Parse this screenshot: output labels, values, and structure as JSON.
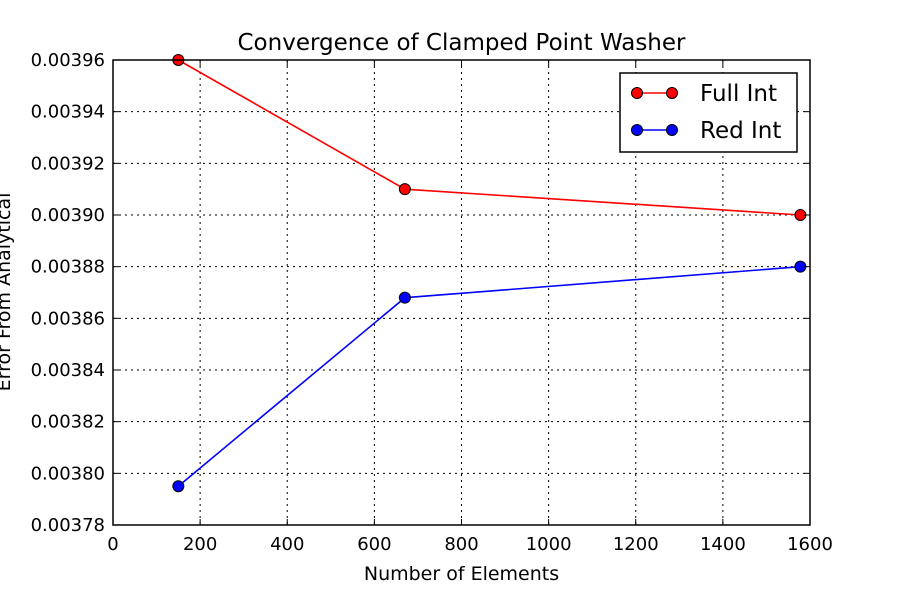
{
  "chart_data": {
    "type": "line",
    "title": "Convergence of Clamped Point Washer",
    "xlabel": "Number of Elements",
    "ylabel": "Error From Analytical",
    "xlim": [
      0,
      1600
    ],
    "ylim": [
      0.00378,
      0.00396
    ],
    "xticks": [
      0,
      200,
      400,
      600,
      800,
      1000,
      1200,
      1400,
      1600
    ],
    "xtick_labels": [
      "0",
      "200",
      "400",
      "600",
      "800",
      "1000",
      "1200",
      "1400",
      "1600"
    ],
    "yticks": [
      0.00378,
      0.0038,
      0.00382,
      0.00384,
      0.00386,
      0.00388,
      0.0039,
      0.00392,
      0.00394,
      0.00396
    ],
    "ytick_labels": [
      "0.00378",
      "0.00380",
      "0.00382",
      "0.00384",
      "0.00386",
      "0.00388",
      "0.00390",
      "0.00392",
      "0.00394",
      "0.00396"
    ],
    "grid": true,
    "legend_position": "top-right",
    "series": [
      {
        "name": "Full Int",
        "color": "#ff0000",
        "marker": "circle",
        "x": [
          150,
          670,
          1578
        ],
        "y": [
          0.00396,
          0.00391,
          0.0039
        ]
      },
      {
        "name": "Red Int",
        "color": "#0000ff",
        "marker": "circle",
        "x": [
          150,
          670,
          1578
        ],
        "y": [
          0.003795,
          0.003868,
          0.00388
        ]
      }
    ]
  }
}
